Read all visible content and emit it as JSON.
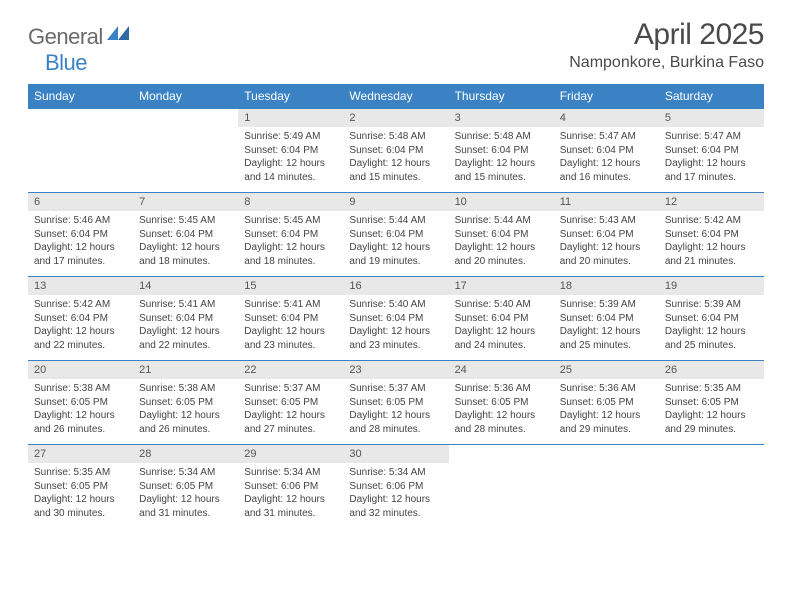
{
  "logo": {
    "general": "General",
    "blue": "Blue"
  },
  "title": "April 2025",
  "location": "Namponkore, Burkina Faso",
  "colors": {
    "header_bg": "#3b82c4",
    "header_text": "#ffffff",
    "daynum_bg": "#e8e8e8",
    "page_bg": "#ffffff",
    "text": "#444444",
    "logo_gray": "#6b6b6b",
    "logo_blue": "#3b82c4"
  },
  "weekdays": [
    "Sunday",
    "Monday",
    "Tuesday",
    "Wednesday",
    "Thursday",
    "Friday",
    "Saturday"
  ],
  "weeks": [
    {
      "days": [
        null,
        null,
        {
          "n": "1",
          "sr": "5:49 AM",
          "ss": "6:04 PM",
          "dl": "12 hours and 14 minutes."
        },
        {
          "n": "2",
          "sr": "5:48 AM",
          "ss": "6:04 PM",
          "dl": "12 hours and 15 minutes."
        },
        {
          "n": "3",
          "sr": "5:48 AM",
          "ss": "6:04 PM",
          "dl": "12 hours and 15 minutes."
        },
        {
          "n": "4",
          "sr": "5:47 AM",
          "ss": "6:04 PM",
          "dl": "12 hours and 16 minutes."
        },
        {
          "n": "5",
          "sr": "5:47 AM",
          "ss": "6:04 PM",
          "dl": "12 hours and 17 minutes."
        }
      ]
    },
    {
      "days": [
        {
          "n": "6",
          "sr": "5:46 AM",
          "ss": "6:04 PM",
          "dl": "12 hours and 17 minutes."
        },
        {
          "n": "7",
          "sr": "5:45 AM",
          "ss": "6:04 PM",
          "dl": "12 hours and 18 minutes."
        },
        {
          "n": "8",
          "sr": "5:45 AM",
          "ss": "6:04 PM",
          "dl": "12 hours and 18 minutes."
        },
        {
          "n": "9",
          "sr": "5:44 AM",
          "ss": "6:04 PM",
          "dl": "12 hours and 19 minutes."
        },
        {
          "n": "10",
          "sr": "5:44 AM",
          "ss": "6:04 PM",
          "dl": "12 hours and 20 minutes."
        },
        {
          "n": "11",
          "sr": "5:43 AM",
          "ss": "6:04 PM",
          "dl": "12 hours and 20 minutes."
        },
        {
          "n": "12",
          "sr": "5:42 AM",
          "ss": "6:04 PM",
          "dl": "12 hours and 21 minutes."
        }
      ]
    },
    {
      "days": [
        {
          "n": "13",
          "sr": "5:42 AM",
          "ss": "6:04 PM",
          "dl": "12 hours and 22 minutes."
        },
        {
          "n": "14",
          "sr": "5:41 AM",
          "ss": "6:04 PM",
          "dl": "12 hours and 22 minutes."
        },
        {
          "n": "15",
          "sr": "5:41 AM",
          "ss": "6:04 PM",
          "dl": "12 hours and 23 minutes."
        },
        {
          "n": "16",
          "sr": "5:40 AM",
          "ss": "6:04 PM",
          "dl": "12 hours and 23 minutes."
        },
        {
          "n": "17",
          "sr": "5:40 AM",
          "ss": "6:04 PM",
          "dl": "12 hours and 24 minutes."
        },
        {
          "n": "18",
          "sr": "5:39 AM",
          "ss": "6:04 PM",
          "dl": "12 hours and 25 minutes."
        },
        {
          "n": "19",
          "sr": "5:39 AM",
          "ss": "6:04 PM",
          "dl": "12 hours and 25 minutes."
        }
      ]
    },
    {
      "days": [
        {
          "n": "20",
          "sr": "5:38 AM",
          "ss": "6:05 PM",
          "dl": "12 hours and 26 minutes."
        },
        {
          "n": "21",
          "sr": "5:38 AM",
          "ss": "6:05 PM",
          "dl": "12 hours and 26 minutes."
        },
        {
          "n": "22",
          "sr": "5:37 AM",
          "ss": "6:05 PM",
          "dl": "12 hours and 27 minutes."
        },
        {
          "n": "23",
          "sr": "5:37 AM",
          "ss": "6:05 PM",
          "dl": "12 hours and 28 minutes."
        },
        {
          "n": "24",
          "sr": "5:36 AM",
          "ss": "6:05 PM",
          "dl": "12 hours and 28 minutes."
        },
        {
          "n": "25",
          "sr": "5:36 AM",
          "ss": "6:05 PM",
          "dl": "12 hours and 29 minutes."
        },
        {
          "n": "26",
          "sr": "5:35 AM",
          "ss": "6:05 PM",
          "dl": "12 hours and 29 minutes."
        }
      ]
    },
    {
      "days": [
        {
          "n": "27",
          "sr": "5:35 AM",
          "ss": "6:05 PM",
          "dl": "12 hours and 30 minutes."
        },
        {
          "n": "28",
          "sr": "5:34 AM",
          "ss": "6:05 PM",
          "dl": "12 hours and 31 minutes."
        },
        {
          "n": "29",
          "sr": "5:34 AM",
          "ss": "6:06 PM",
          "dl": "12 hours and 31 minutes."
        },
        {
          "n": "30",
          "sr": "5:34 AM",
          "ss": "6:06 PM",
          "dl": "12 hours and 32 minutes."
        },
        null,
        null,
        null
      ]
    }
  ],
  "labels": {
    "sunrise": "Sunrise:",
    "sunset": "Sunset:",
    "daylight": "Daylight:"
  }
}
